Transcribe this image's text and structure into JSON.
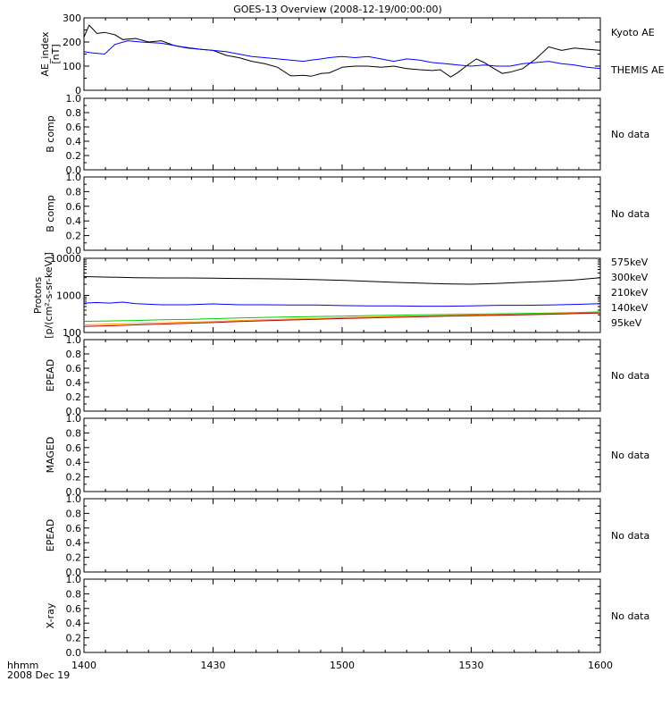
{
  "title": "GOES-13 Overview (2008-12-19/00:00:00)",
  "time_axis": {
    "ticks": [
      "1400",
      "1430",
      "1500",
      "1530",
      "1600"
    ],
    "row1": "hhmm",
    "row2": "2008 Dec 19"
  },
  "no_data_label": "No data",
  "chart_data": [
    {
      "id": "ae",
      "type": "line",
      "ylabel": "AE_index\n[nT]",
      "ylim": [
        0,
        300
      ],
      "yticks": [
        "0",
        "100",
        "200",
        "300"
      ],
      "x_hours": [
        14.0,
        16.0
      ],
      "series": [
        {
          "name": "Kyoto AE",
          "color": "#000000",
          "x": [
            14.0,
            14.02,
            14.05,
            14.08,
            14.12,
            14.15,
            14.2,
            14.25,
            14.3,
            14.35,
            14.4,
            14.45,
            14.5,
            14.55,
            14.6,
            14.65,
            14.7,
            14.75,
            14.8,
            14.82,
            14.85,
            14.88,
            14.92,
            14.95,
            15.0,
            15.05,
            15.1,
            15.15,
            15.2,
            15.25,
            15.3,
            15.35,
            15.38,
            15.42,
            15.45,
            15.48,
            15.52,
            15.55,
            15.58,
            15.62,
            15.65,
            15.7,
            15.75,
            15.8,
            15.85,
            15.9,
            15.95,
            16.0
          ],
          "y": [
            220,
            270,
            235,
            240,
            230,
            210,
            215,
            200,
            205,
            185,
            175,
            170,
            165,
            145,
            135,
            120,
            110,
            95,
            60,
            60,
            62,
            58,
            70,
            72,
            95,
            100,
            100,
            95,
            100,
            90,
            85,
            82,
            85,
            55,
            75,
            100,
            130,
            115,
            95,
            70,
            75,
            90,
            130,
            180,
            165,
            175,
            170,
            165
          ]
        },
        {
          "name": "THEMIS AE",
          "color": "#0000ff",
          "x": [
            14.0,
            14.03,
            14.08,
            14.12,
            14.17,
            14.22,
            14.3,
            14.38,
            14.45,
            14.5,
            14.55,
            14.6,
            14.65,
            14.7,
            14.75,
            14.8,
            14.85,
            14.88,
            14.92,
            14.95,
            15.0,
            15.05,
            15.1,
            15.15,
            15.2,
            15.25,
            15.3,
            15.35,
            15.4,
            15.45,
            15.5,
            15.55,
            15.6,
            15.65,
            15.7,
            15.75,
            15.8,
            15.85,
            15.9,
            15.95,
            16.0
          ],
          "y": [
            160,
            155,
            150,
            190,
            205,
            200,
            195,
            180,
            170,
            165,
            160,
            150,
            140,
            135,
            130,
            125,
            120,
            125,
            130,
            135,
            140,
            135,
            140,
            130,
            120,
            130,
            125,
            115,
            110,
            105,
            100,
            105,
            100,
            100,
            110,
            115,
            120,
            110,
            105,
            95,
            90
          ]
        }
      ]
    },
    {
      "id": "b1",
      "type": "line",
      "ylabel": "B comp",
      "ylim": [
        0,
        1
      ],
      "yticks": [
        "0.0",
        "0.2",
        "0.4",
        "0.6",
        "0.8",
        "1.0"
      ],
      "no_data": true
    },
    {
      "id": "b2",
      "type": "line",
      "ylabel": "B comp",
      "ylim": [
        0,
        1
      ],
      "yticks": [
        "0.0",
        "0.2",
        "0.4",
        "0.6",
        "0.8",
        "1.0"
      ],
      "no_data": true
    },
    {
      "id": "protons",
      "type": "line",
      "ylabel": "Protons\n[p/(cm²-s-sr-keV)]",
      "ylim": [
        100,
        10000
      ],
      "yscale": "log",
      "yticks": [
        "100",
        "1000",
        "10000"
      ],
      "series": [
        {
          "name": "95keV",
          "color": "#000000",
          "x": [
            14.0,
            14.1,
            14.2,
            14.3,
            14.4,
            14.5,
            14.6,
            14.7,
            14.8,
            14.9,
            15.0,
            15.1,
            15.2,
            15.3,
            15.4,
            15.5,
            15.6,
            15.7,
            15.8,
            15.9,
            16.0
          ],
          "y": [
            3200,
            3100,
            3000,
            2950,
            2950,
            2900,
            2850,
            2800,
            2750,
            2650,
            2550,
            2400,
            2250,
            2150,
            2050,
            2000,
            2100,
            2250,
            2400,
            2600,
            3000
          ]
        },
        {
          "name": "140keV",
          "color": "#0000ff",
          "x": [
            14.0,
            14.05,
            14.1,
            14.15,
            14.2,
            14.3,
            14.4,
            14.5,
            14.6,
            14.7,
            14.8,
            14.9,
            15.0,
            15.1,
            15.2,
            15.3,
            15.4,
            15.5,
            15.6,
            15.7,
            15.8,
            15.9,
            16.0
          ],
          "y": [
            620,
            640,
            620,
            660,
            600,
            560,
            560,
            590,
            560,
            560,
            550,
            550,
            530,
            520,
            520,
            510,
            510,
            520,
            540,
            540,
            550,
            570,
            600
          ]
        },
        {
          "name": "210keV",
          "color": "#00cc00",
          "x": [
            14.0,
            14.1,
            14.2,
            14.3,
            14.4,
            14.5,
            14.6,
            14.7,
            14.8,
            14.9,
            15.0,
            15.1,
            15.2,
            15.3,
            15.4,
            15.5,
            15.6,
            15.7,
            15.8,
            15.9,
            16.0
          ],
          "y": [
            200,
            205,
            210,
            220,
            225,
            235,
            245,
            255,
            262,
            270,
            275,
            285,
            290,
            300,
            305,
            312,
            318,
            325,
            335,
            345,
            360
          ]
        },
        {
          "name": "300keV",
          "color": "#ff9900",
          "x": [
            14.0,
            14.1,
            14.2,
            14.3,
            14.4,
            14.5,
            14.6,
            14.7,
            14.8,
            14.9,
            15.0,
            15.1,
            15.2,
            15.3,
            15.4,
            15.5,
            15.6,
            15.7,
            15.8,
            15.9,
            16.0
          ],
          "y": [
            160,
            168,
            175,
            183,
            190,
            198,
            210,
            220,
            230,
            240,
            250,
            260,
            270,
            278,
            286,
            294,
            302,
            310,
            320,
            332,
            345
          ]
        },
        {
          "name": "575keV",
          "color": "#bb0000",
          "x": [
            14.0,
            14.1,
            14.2,
            14.3,
            14.4,
            14.5,
            14.6,
            14.7,
            14.8,
            14.9,
            15.0,
            15.1,
            15.2,
            15.3,
            15.4,
            15.5,
            15.6,
            15.7,
            15.8,
            15.9,
            16.0
          ],
          "y": [
            145,
            152,
            160,
            168,
            176,
            185,
            197,
            207,
            217,
            227,
            237,
            247,
            257,
            266,
            275,
            284,
            292,
            300,
            310,
            322,
            335
          ]
        }
      ]
    },
    {
      "id": "epead1",
      "type": "line",
      "ylabel": "EPEAD",
      "ylim": [
        0,
        1
      ],
      "yticks": [
        "0.0",
        "0.2",
        "0.4",
        "0.6",
        "0.8",
        "1.0"
      ],
      "no_data": true
    },
    {
      "id": "maged",
      "type": "line",
      "ylabel": "MAGED",
      "ylim": [
        0,
        1
      ],
      "yticks": [
        "0.0",
        "0.2",
        "0.4",
        "0.6",
        "0.8",
        "1.0"
      ],
      "no_data": true
    },
    {
      "id": "epead2",
      "type": "line",
      "ylabel": "EPEAD",
      "ylim": [
        0,
        1
      ],
      "yticks": [
        "0.0",
        "0.2",
        "0.4",
        "0.6",
        "0.8",
        "1.0"
      ],
      "no_data": true
    },
    {
      "id": "xray",
      "type": "line",
      "ylabel": "X-ray",
      "ylim": [
        0,
        1
      ],
      "yticks": [
        "0.0",
        "0.2",
        "0.4",
        "0.6",
        "0.8",
        "1.0"
      ],
      "no_data": true
    }
  ]
}
